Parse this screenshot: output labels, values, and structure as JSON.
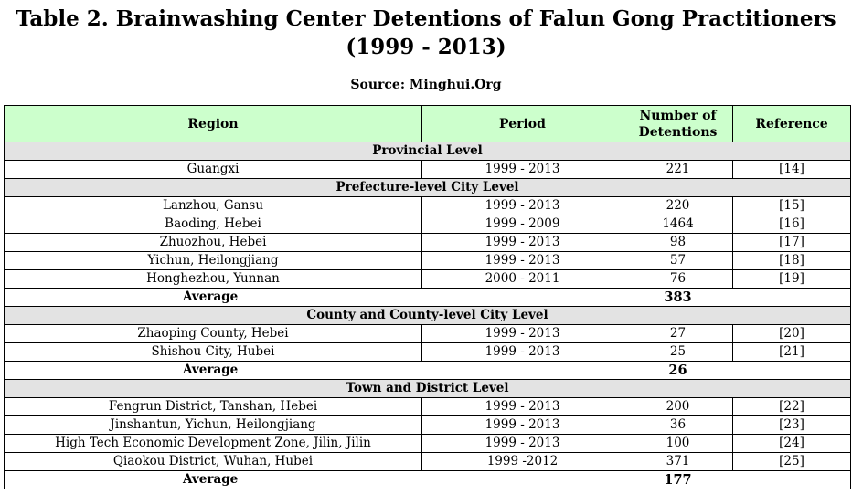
{
  "title": "Table 2. Brainwashing Center Detentions of Falun Gong Practitioners (1999 - 2013)",
  "source": "Source: Minghui.Org",
  "headers": {
    "region": "Region",
    "period": "Period",
    "number": "Number of Detentions",
    "reference": "Reference"
  },
  "sections": [
    {
      "label": "Provincial Level",
      "rows": [
        {
          "region": "Guangxi",
          "period": "1999 - 2013",
          "number": "221",
          "reference": "[14]"
        }
      ]
    },
    {
      "label": "Prefecture-level City Level",
      "rows": [
        {
          "region": "Lanzhou, Gansu",
          "period": "1999 - 2013",
          "number": "220",
          "reference": "[15]"
        },
        {
          "region": "Baoding, Hebei",
          "period": "1999 - 2009",
          "number": "1464",
          "reference": "[16]"
        },
        {
          "region": "Zhuozhou, Hebei",
          "period": "1999 - 2013",
          "number": "98",
          "reference": "[17]"
        },
        {
          "region": "Yichun, Heilongjiang",
          "period": "1999 - 2013",
          "number": "57",
          "reference": "[18]"
        },
        {
          "region": "Honghezhou, Yunnan",
          "period": "2000 - 2011",
          "number": "76",
          "reference": "[19]"
        }
      ],
      "average_label": "Average",
      "average_value": "383"
    },
    {
      "label": "County and County-level City Level",
      "rows": [
        {
          "region": "Zhaoping County, Hebei",
          "period": "1999 - 2013",
          "number": "27",
          "reference": "[20]"
        },
        {
          "region": "Shishou City, Hubei",
          "period": "1999 - 2013",
          "number": "25",
          "reference": "[21]"
        }
      ],
      "average_label": "Average",
      "average_value": "26"
    },
    {
      "label": "Town and District Level",
      "rows": [
        {
          "region": "Fengrun District, Tanshan, Hebei",
          "period": "1999 - 2013",
          "number": "200",
          "reference": "[22]"
        },
        {
          "region": "Jinshantun, Yichun, Heilongjiang",
          "period": "1999 - 2013",
          "number": "36",
          "reference": "[23]"
        },
        {
          "region": "High Tech Economic Development Zone, Jilin, Jilin",
          "period": "1999 - 2013",
          "number": "100",
          "reference": "[24]"
        },
        {
          "region": "Qiaokou District, Wuhan, Hubei",
          "period": "1999 -2012",
          "number": "371",
          "reference": "[25]"
        }
      ],
      "average_label": "Average",
      "average_value": "177"
    }
  ]
}
